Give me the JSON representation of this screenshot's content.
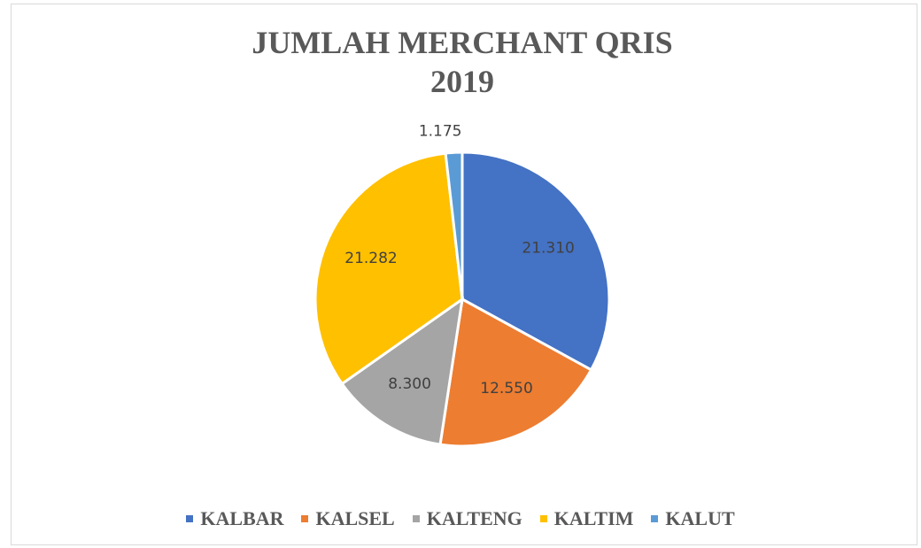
{
  "chart_data": {
    "type": "pie",
    "title": "JUMLAH MERCHANT QRIS 2019",
    "categories": [
      "KALBAR",
      "KALSEL",
      "KALTENG",
      "KALTIM",
      "KALUT"
    ],
    "values": [
      21310,
      12550,
      8300,
      21282,
      1175
    ],
    "value_labels": [
      "21.310",
      "12.550",
      "8.300",
      "21.282",
      "1.175"
    ],
    "colors": [
      "#4472c4",
      "#ed7d31",
      "#a5a5a5",
      "#ffc000",
      "#5b9bd5"
    ],
    "legend": "bottom"
  }
}
